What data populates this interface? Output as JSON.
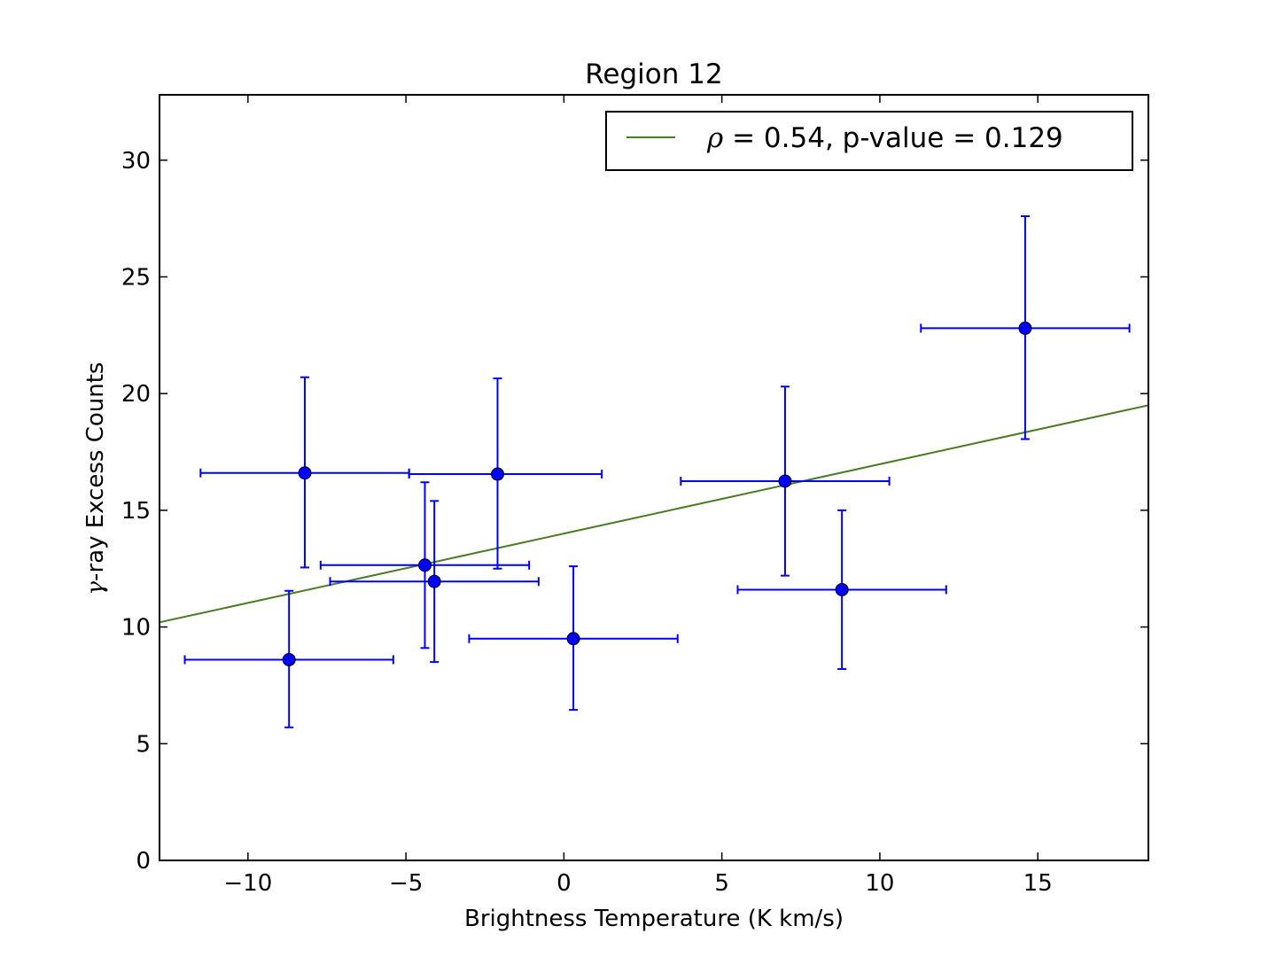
{
  "chart_data": {
    "type": "scatter",
    "title": "Region 12",
    "xlabel": "Brightness Temperature (K km/s)",
    "ylabel_prefix": "γ",
    "ylabel": "-ray Excess Counts",
    "xlim": [
      -12.8,
      18.5
    ],
    "ylim": [
      0,
      32.8
    ],
    "xticks": [
      -10,
      -5,
      0,
      5,
      10,
      15
    ],
    "xtick_labels": [
      "−10",
      "−5",
      "0",
      "5",
      "10",
      "15"
    ],
    "yticks": [
      0,
      5,
      10,
      15,
      20,
      25,
      30
    ],
    "ytick_labels": [
      "0",
      "5",
      "10",
      "15",
      "20",
      "25",
      "30"
    ],
    "grid": false,
    "legend_placement": "top-right",
    "points": [
      {
        "x": -8.7,
        "y": 8.6,
        "xerr": [
          3.3,
          3.3
        ],
        "yerr": [
          2.9,
          2.95
        ]
      },
      {
        "x": -8.2,
        "y": 16.6,
        "xerr": [
          3.3,
          3.3
        ],
        "yerr": [
          4.05,
          4.1
        ]
      },
      {
        "x": -4.4,
        "y": 12.65,
        "xerr": [
          3.3,
          3.3
        ],
        "yerr": [
          3.55,
          3.55
        ]
      },
      {
        "x": -4.1,
        "y": 11.95,
        "xerr": [
          3.3,
          3.3
        ],
        "yerr": [
          3.45,
          3.45
        ]
      },
      {
        "x": -2.1,
        "y": 16.55,
        "xerr": [
          2.8,
          3.3
        ],
        "yerr": [
          4.05,
          4.1
        ]
      },
      {
        "x": 0.3,
        "y": 9.5,
        "xerr": [
          3.3,
          3.3
        ],
        "yerr": [
          3.05,
          3.1
        ]
      },
      {
        "x": 7.0,
        "y": 16.25,
        "xerr": [
          3.3,
          3.3
        ],
        "yerr": [
          4.05,
          4.05
        ]
      },
      {
        "x": 8.8,
        "y": 11.6,
        "xerr": [
          3.3,
          3.3
        ],
        "yerr": [
          3.4,
          3.4
        ]
      },
      {
        "x": 14.6,
        "y": 22.8,
        "xerr": [
          3.3,
          3.3
        ],
        "yerr": [
          4.75,
          4.8
        ]
      }
    ],
    "fit_line": {
      "label_symbol": "ρ",
      "label": " = 0.54, p-value = 0.129",
      "x": [
        -12.8,
        18.5
      ],
      "y": [
        10.2,
        19.5
      ],
      "color": "#4a7c23"
    },
    "point_color": "#0000ff"
  }
}
